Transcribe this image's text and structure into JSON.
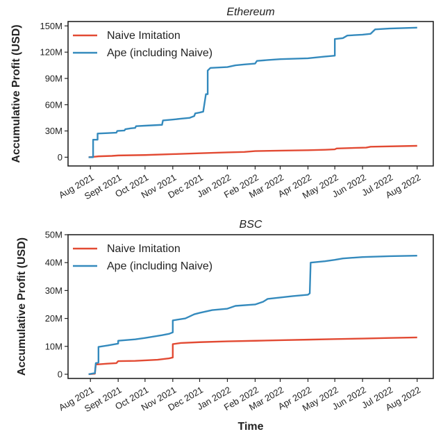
{
  "chart_data": [
    {
      "type": "line",
      "title": "Ethereum",
      "xlabel": "",
      "ylabel": "Accumulative Profit (USD)",
      "ylim": [
        -10,
        155
      ],
      "yunit": "M USD",
      "ytick_values": [
        0,
        30,
        60,
        90,
        120,
        150
      ],
      "ytick_labels": [
        "0",
        "30M",
        "60M",
        "90M",
        "120M",
        "150M"
      ],
      "xtick_labels": [
        "Aug 2021",
        "Sept 2021",
        "Oct 2021",
        "Nov 2021",
        "Dec 2021",
        "Jan 2022",
        "Feb 2022",
        "Mar 2022",
        "Apr 2022",
        "May 2022",
        "Jun 2022",
        "Jul 2022",
        "Aug 2022"
      ],
      "xtick_dates": [
        "2021-08-01",
        "2021-09-01",
        "2021-10-01",
        "2021-11-01",
        "2021-12-01",
        "2022-01-01",
        "2022-02-01",
        "2022-03-01",
        "2022-04-01",
        "2022-05-01",
        "2022-06-01",
        "2022-07-01",
        "2022-08-01"
      ],
      "xlim": [
        "2021-07-07",
        "2022-08-19"
      ],
      "legend": "top-left",
      "grid": false,
      "series": [
        {
          "name": "Naive Imitation",
          "color": "#e24a33",
          "points": [
            [
              "2021-07-30",
              0
            ],
            [
              "2021-08-05",
              0.5
            ],
            [
              "2021-08-10",
              1
            ],
            [
              "2021-08-25",
              1.5
            ],
            [
              "2021-09-01",
              2
            ],
            [
              "2021-10-01",
              2.5
            ],
            [
              "2021-11-01",
              3.5
            ],
            [
              "2021-12-01",
              4.5
            ],
            [
              "2022-01-01",
              5.5
            ],
            [
              "2022-01-20",
              6
            ],
            [
              "2022-02-01",
              7
            ],
            [
              "2022-03-01",
              7.5
            ],
            [
              "2022-04-01",
              8
            ],
            [
              "2022-04-20",
              8.5
            ],
            [
              "2022-05-01",
              9
            ],
            [
              "2022-05-03",
              10
            ],
            [
              "2022-06-05",
              11
            ],
            [
              "2022-06-10",
              12
            ],
            [
              "2022-08-01",
              13
            ]
          ]
        },
        {
          "name": "Ape (including Naive)",
          "color": "#348abd",
          "points": [
            [
              "2021-07-30",
              0
            ],
            [
              "2021-08-04",
              0
            ],
            [
              "2021-08-04",
              20
            ],
            [
              "2021-08-09",
              20
            ],
            [
              "2021-08-09",
              27
            ],
            [
              "2021-08-20",
              27.5
            ],
            [
              "2021-08-30",
              28
            ],
            [
              "2021-08-31",
              30
            ],
            [
              "2021-09-08",
              30.5
            ],
            [
              "2021-09-09",
              32
            ],
            [
              "2021-09-15",
              33
            ],
            [
              "2021-09-20",
              33.5
            ],
            [
              "2021-09-21",
              35.5
            ],
            [
              "2021-10-01",
              36
            ],
            [
              "2021-10-20",
              37
            ],
            [
              "2021-10-21",
              42
            ],
            [
              "2021-11-01",
              43
            ],
            [
              "2021-11-10",
              44
            ],
            [
              "2021-11-20",
              45
            ],
            [
              "2021-11-25",
              47
            ],
            [
              "2021-11-26",
              50
            ],
            [
              "2021-12-01",
              51
            ],
            [
              "2021-12-05",
              52
            ],
            [
              "2021-12-08",
              72
            ],
            [
              "2021-12-10",
              72
            ],
            [
              "2021-12-10",
              99
            ],
            [
              "2021-12-13",
              102
            ],
            [
              "2022-01-01",
              103
            ],
            [
              "2022-01-10",
              105
            ],
            [
              "2022-01-20",
              106
            ],
            [
              "2022-02-01",
              107
            ],
            [
              "2022-02-03",
              110
            ],
            [
              "2022-02-15",
              111
            ],
            [
              "2022-03-01",
              112
            ],
            [
              "2022-04-01",
              113
            ],
            [
              "2022-04-20",
              115
            ],
            [
              "2022-05-01",
              116
            ],
            [
              "2022-05-01",
              135
            ],
            [
              "2022-05-10",
              136
            ],
            [
              "2022-05-15",
              139
            ],
            [
              "2022-06-01",
              140
            ],
            [
              "2022-06-10",
              141
            ],
            [
              "2022-06-15",
              146
            ],
            [
              "2022-07-01",
              147
            ],
            [
              "2022-08-01",
              148
            ]
          ]
        }
      ]
    },
    {
      "type": "line",
      "title": "BSC",
      "xlabel": "Time",
      "ylabel": "Accumulative Profit (USD)",
      "ylim": [
        -1.5,
        50
      ],
      "yunit": "M USD",
      "ytick_values": [
        0,
        10,
        20,
        30,
        40,
        50
      ],
      "ytick_labels": [
        "0",
        "10M",
        "20M",
        "30M",
        "40M",
        "50M"
      ],
      "xtick_labels": [
        "Aug 2021",
        "Sept 2021",
        "Oct 2021",
        "Nov 2021",
        "Dec 2021",
        "Jan 2022",
        "Feb 2022",
        "Mar 2022",
        "Apr 2022",
        "May 2022",
        "Jun 2022",
        "Jul 2022",
        "Aug 2022"
      ],
      "xtick_dates": [
        "2021-08-01",
        "2021-09-01",
        "2021-10-01",
        "2021-11-01",
        "2021-12-01",
        "2022-01-01",
        "2022-02-01",
        "2022-03-01",
        "2022-04-01",
        "2022-05-01",
        "2022-06-01",
        "2022-07-01",
        "2022-08-01"
      ],
      "xlim": [
        "2021-07-07",
        "2022-08-19"
      ],
      "legend": "top-left",
      "grid": false,
      "series": [
        {
          "name": "Naive Imitation",
          "color": "#e24a33",
          "points": [
            [
              "2021-07-30",
              0
            ],
            [
              "2021-08-06",
              0.2
            ],
            [
              "2021-08-07",
              3.5
            ],
            [
              "2021-08-20",
              3.8
            ],
            [
              "2021-08-30",
              4
            ],
            [
              "2021-09-01",
              4.7
            ],
            [
              "2021-09-20",
              4.8
            ],
            [
              "2021-10-15",
              5.2
            ],
            [
              "2021-10-28",
              5.7
            ],
            [
              "2021-11-01",
              6
            ],
            [
              "2021-11-01",
              10.8
            ],
            [
              "2021-11-10",
              11.2
            ],
            [
              "2021-12-01",
              11.5
            ],
            [
              "2022-01-01",
              11.8
            ],
            [
              "2022-02-01",
              12
            ],
            [
              "2022-03-01",
              12.2
            ],
            [
              "2022-04-01",
              12.4
            ],
            [
              "2022-05-01",
              12.6
            ],
            [
              "2022-06-01",
              12.8
            ],
            [
              "2022-07-01",
              13
            ],
            [
              "2022-08-01",
              13.2
            ]
          ]
        },
        {
          "name": "Ape (including Naive)",
          "color": "#348abd",
          "points": [
            [
              "2021-07-30",
              0
            ],
            [
              "2021-08-06",
              0.4
            ],
            [
              "2021-08-07",
              4
            ],
            [
              "2021-08-10",
              4.2
            ],
            [
              "2021-08-10",
              9.8
            ],
            [
              "2021-08-20",
              10.3
            ],
            [
              "2021-09-01",
              11
            ],
            [
              "2021-09-01",
              12
            ],
            [
              "2021-09-20",
              12.5
            ],
            [
              "2021-10-01",
              13
            ],
            [
              "2021-10-20",
              14
            ],
            [
              "2021-10-28",
              14.5
            ],
            [
              "2021-11-01",
              15
            ],
            [
              "2021-11-01",
              19.3
            ],
            [
              "2021-11-15",
              20
            ],
            [
              "2021-11-25",
              21.5
            ],
            [
              "2021-12-01",
              22
            ],
            [
              "2021-12-15",
              23
            ],
            [
              "2022-01-01",
              23.5
            ],
            [
              "2022-01-10",
              24.5
            ],
            [
              "2022-02-01",
              25
            ],
            [
              "2022-02-10",
              26
            ],
            [
              "2022-02-15",
              27
            ],
            [
              "2022-03-01",
              27.5
            ],
            [
              "2022-03-15",
              28
            ],
            [
              "2022-04-01",
              28.5
            ],
            [
              "2022-04-03",
              29
            ],
            [
              "2022-04-04",
              40
            ],
            [
              "2022-04-20",
              40.5
            ],
            [
              "2022-05-01",
              41
            ],
            [
              "2022-05-10",
              41.5
            ],
            [
              "2022-06-01",
              42
            ],
            [
              "2022-07-01",
              42.3
            ],
            [
              "2022-08-01",
              42.5
            ]
          ]
        }
      ]
    }
  ]
}
